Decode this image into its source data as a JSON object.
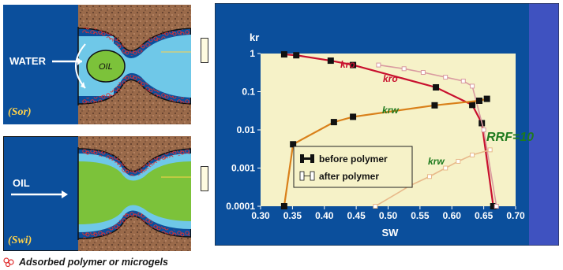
{
  "top_panel": {
    "water_label": "WATER",
    "oil_label": "OIL",
    "caption": "(Sor)"
  },
  "bottom_panel": {
    "oil_label": "OIL",
    "caption": "(Swi)"
  },
  "footer": {
    "legend_text": "Adsorbed polymer or microgels"
  },
  "colors": {
    "panel_blue": "#0b4f9c",
    "plot_bg": "#f6f2c8",
    "kro_before": "#c8102e",
    "krw_before": "#d9801a",
    "kro_after": "#d99aa0",
    "krw_after": "#e8b98a",
    "annotation_green": "#1e7a1e",
    "water_blue": "#6fc8e8",
    "oil_green": "#7cc23a",
    "rock_brown": "#9a6a4a"
  },
  "chart_data": {
    "type": "line",
    "xlabel": "SW",
    "ylabel": "kr",
    "xlim": [
      0.3,
      0.7
    ],
    "ylim": [
      0.0001,
      1
    ],
    "y_scale": "log",
    "x_ticks": [
      "0.30",
      "0.35",
      "0.40",
      "0.45",
      "0.50",
      "0.55",
      "0.60",
      "0.65",
      "0.70"
    ],
    "y_ticks": [
      {
        "value": 1,
        "label": "1"
      },
      {
        "value": 0.1,
        "label": "0.1"
      },
      {
        "value": 0.01,
        "label": "0.01"
      },
      {
        "value": 0.001,
        "label": "0.001"
      },
      {
        "value": 0.0001,
        "label": "0.0001"
      }
    ],
    "series": [
      {
        "key": "kro_before",
        "label": "kro",
        "style": "filled",
        "points": [
          [
            0.337,
            0.95
          ],
          [
            0.356,
            0.9
          ],
          [
            0.41,
            0.65
          ],
          [
            0.445,
            0.5
          ],
          [
            0.575,
            0.13
          ],
          [
            0.632,
            0.045
          ],
          [
            0.647,
            0.015
          ],
          [
            0.665,
            0.0001
          ]
        ]
      },
      {
        "key": "kro_after",
        "label": "kro",
        "style": "open",
        "points": [
          [
            0.485,
            0.5
          ],
          [
            0.525,
            0.4
          ],
          [
            0.555,
            0.32
          ],
          [
            0.59,
            0.24
          ],
          [
            0.618,
            0.19
          ],
          [
            0.632,
            0.14
          ],
          [
            0.65,
            0.01
          ],
          [
            0.67,
            0.0001
          ]
        ]
      },
      {
        "key": "krw_before",
        "label": "krw",
        "style": "filled",
        "points": [
          [
            0.337,
            0.0001
          ],
          [
            0.351,
            0.0042
          ],
          [
            0.415,
            0.016
          ],
          [
            0.445,
            0.022
          ],
          [
            0.573,
            0.044
          ],
          [
            0.643,
            0.058
          ],
          [
            0.655,
            0.065
          ]
        ]
      },
      {
        "key": "krw_after",
        "label": "krw",
        "style": "open",
        "points": [
          [
            0.48,
            0.0001
          ],
          [
            0.535,
            0.00035
          ],
          [
            0.565,
            0.0006
          ],
          [
            0.59,
            0.001
          ],
          [
            0.61,
            0.0015
          ],
          [
            0.632,
            0.0022
          ],
          [
            0.66,
            0.003
          ]
        ]
      }
    ],
    "series_labels": [
      {
        "text": "kro",
        "color": "kro_before"
      },
      {
        "text": "kro",
        "color": "kro_before"
      },
      {
        "text": "krw",
        "color": "annotation_green"
      },
      {
        "text": "krw",
        "color": "annotation_green"
      }
    ],
    "annotation": "RRF=10",
    "legend": {
      "position": "center-left",
      "entries": [
        {
          "label": "before polymer",
          "style": "filled"
        },
        {
          "label": "after polymer",
          "style": "open"
        }
      ]
    }
  }
}
